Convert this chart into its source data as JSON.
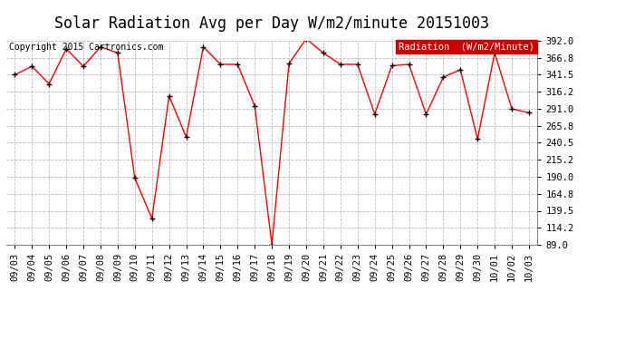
{
  "title": "Solar Radiation Avg per Day W/m2/minute 20151003",
  "copyright": "Copyright 2015 Cartronics.com",
  "legend_label": "Radiation  (W/m2/Minute)",
  "dates": [
    "09/03",
    "09/04",
    "09/05",
    "09/06",
    "09/07",
    "09/08",
    "09/09",
    "09/10",
    "09/11",
    "09/12",
    "09/13",
    "09/14",
    "09/15",
    "09/16",
    "09/17",
    "09/18",
    "09/19",
    "09/20",
    "09/21",
    "09/22",
    "09/23",
    "09/24",
    "09/25",
    "09/26",
    "09/27",
    "09/28",
    "09/29",
    "09/30",
    "10/01",
    "10/02",
    "10/03"
  ],
  "values": [
    341.5,
    354.0,
    328.0,
    380.0,
    354.0,
    383.0,
    374.0,
    188.0,
    128.0,
    310.0,
    249.0,
    383.0,
    357.0,
    357.0,
    295.0,
    89.0,
    358.0,
    395.0,
    374.0,
    357.0,
    357.0,
    283.0,
    355.0,
    357.0,
    283.0,
    338.0,
    349.0,
    246.0,
    374.0,
    291.0,
    285.0
  ],
  "ylim_min": 89.0,
  "ylim_max": 392.0,
  "yticks": [
    89.0,
    114.2,
    139.5,
    164.8,
    190.0,
    215.2,
    240.5,
    265.8,
    291.0,
    316.2,
    341.5,
    366.8,
    392.0
  ],
  "line_color": "#ff0000",
  "marker_color": "#000000",
  "bg_color": "#ffffff",
  "grid_color": "#bbbbbb",
  "legend_bg": "#cc0000",
  "legend_text_color": "#ffffff",
  "title_fontsize": 12,
  "copyright_fontsize": 7,
  "tick_fontsize": 7.5,
  "legend_fontsize": 7.5
}
